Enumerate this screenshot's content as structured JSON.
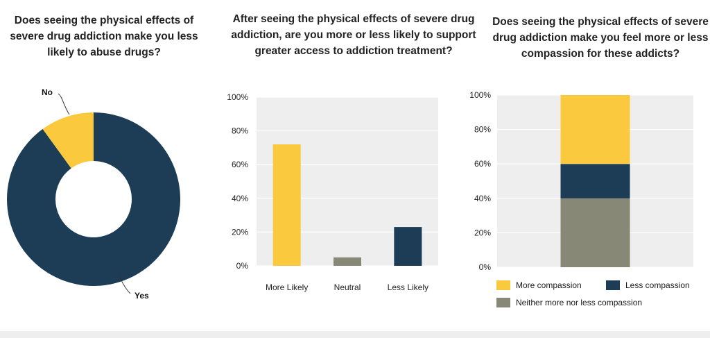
{
  "colors": {
    "yellow": "#fbc93d",
    "navy": "#1c3d55",
    "gray": "#888877",
    "plot_bg": "#eeeeee",
    "grid": "#ffffff"
  },
  "chart_data": [
    {
      "type": "pie",
      "title": "Does seeing the physical effects of severe drug addiction make you less likely to abuse drugs?",
      "categories": [
        "Yes",
        "No"
      ],
      "values": [
        90,
        10
      ],
      "colors": [
        "#1c3d55",
        "#fbc93d"
      ],
      "style": "donut"
    },
    {
      "type": "bar",
      "title": "After seeing the physical effects of severe drug addiction, are you more or less likely to support greater access to addiction treatment?",
      "categories": [
        "More Likely",
        "Neutral",
        "Less Likely"
      ],
      "values": [
        72,
        5,
        23
      ],
      "colors": [
        "#fbc93d",
        "#888877",
        "#1c3d55"
      ],
      "ylim": [
        0,
        100
      ],
      "yticks": [
        "0%",
        "20%",
        "40%",
        "60%",
        "80%",
        "100%"
      ],
      "grid": true
    },
    {
      "type": "bar",
      "stacked": true,
      "title": "Does seeing the physical effects of severe drug addiction make you feel more or less compassion for these addicts?",
      "series": [
        {
          "name": "Neither more nor less compassion",
          "values": [
            40
          ],
          "color": "#888877"
        },
        {
          "name": "Less compassion",
          "values": [
            20
          ],
          "color": "#1c3d55"
        },
        {
          "name": "More compassion",
          "values": [
            40
          ],
          "color": "#fbc93d"
        }
      ],
      "ylim": [
        0,
        100
      ],
      "yticks": [
        "0%",
        "20%",
        "40%",
        "60%",
        "80%",
        "100%"
      ],
      "grid": true,
      "legend": [
        "More compassion",
        "Less compassion",
        "Neither more nor less compassion"
      ]
    }
  ]
}
